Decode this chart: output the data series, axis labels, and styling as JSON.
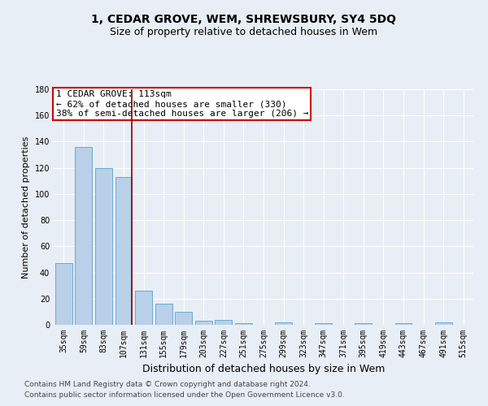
{
  "title": "1, CEDAR GROVE, WEM, SHREWSBURY, SY4 5DQ",
  "subtitle": "Size of property relative to detached houses in Wem",
  "xlabel": "Distribution of detached houses by size in Wem",
  "ylabel": "Number of detached properties",
  "footnote1": "Contains HM Land Registry data © Crown copyright and database right 2024.",
  "footnote2": "Contains public sector information licensed under the Open Government Licence v3.0.",
  "categories": [
    "35sqm",
    "59sqm",
    "83sqm",
    "107sqm",
    "131sqm",
    "155sqm",
    "179sqm",
    "203sqm",
    "227sqm",
    "251sqm",
    "275sqm",
    "299sqm",
    "323sqm",
    "347sqm",
    "371sqm",
    "395sqm",
    "419sqm",
    "443sqm",
    "467sqm",
    "491sqm",
    "515sqm"
  ],
  "values": [
    47,
    136,
    120,
    113,
    26,
    16,
    10,
    3,
    4,
    1,
    0,
    2,
    0,
    1,
    0,
    1,
    0,
    1,
    0,
    2,
    0
  ],
  "ylim": [
    0,
    180
  ],
  "bar_color": "#b8d0e8",
  "bar_edge_color": "#6aaad4",
  "vline_color": "#8b0000",
  "annotation_text": "1 CEDAR GROVE: 113sqm\n← 62% of detached houses are smaller (330)\n38% of semi-detached houses are larger (206) →",
  "annotation_box_color": "white",
  "annotation_box_edge_color": "#cc0000",
  "title_fontsize": 10,
  "subtitle_fontsize": 9,
  "xlabel_fontsize": 9,
  "ylabel_fontsize": 8,
  "tick_fontsize": 7,
  "annotation_fontsize": 8,
  "footnote_fontsize": 6.5,
  "background_color": "#e8eef5",
  "plot_bg_color": "#e8eef5",
  "grid_color": "#ffffff"
}
